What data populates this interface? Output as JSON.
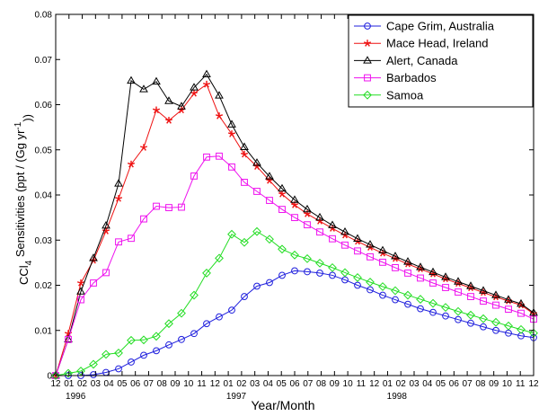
{
  "chart_data": {
    "type": "line",
    "title": "",
    "xlabel": "Year/Month",
    "ylabel": "CCl4 Sensitivities (ppt / (Gg yr-1))",
    "ylabel_parts": {
      "pre": "CCl",
      "sub": "4",
      "mid": " Sensitivities (ppt / (Gg yr",
      "sup": "-1",
      "post": "))"
    },
    "ylim": [
      0,
      0.08
    ],
    "yticks": [
      "0",
      "0.01",
      "0.02",
      "0.03",
      "0.04",
      "0.05",
      "0.06",
      "0.07",
      "0.08"
    ],
    "xticks": [
      "12",
      "01",
      "02",
      "03",
      "04",
      "05",
      "06",
      "07",
      "08",
      "09",
      "10",
      "11",
      "12",
      "01",
      "02",
      "03",
      "04",
      "05",
      "06",
      "07",
      "08",
      "09",
      "10",
      "11",
      "12",
      "01",
      "02",
      "03",
      "04",
      "05",
      "06",
      "07",
      "08",
      "09",
      "10",
      "11",
      "12"
    ],
    "year_labels": [
      "1996",
      "1997",
      "1998"
    ],
    "grid": false,
    "legend_position": "top-right",
    "series": [
      {
        "name": "Cape Grim, Australia",
        "color": "#1f1fdd",
        "marker": "circle",
        "values": [
          0.0,
          0.0,
          0.0,
          0.0002,
          0.0007,
          0.0015,
          0.003,
          0.0045,
          0.0055,
          0.0068,
          0.008,
          0.0093,
          0.0115,
          0.013,
          0.0145,
          0.0175,
          0.0198,
          0.0206,
          0.0222,
          0.0232,
          0.023,
          0.0227,
          0.0222,
          0.0212,
          0.02,
          0.019,
          0.0178,
          0.0168,
          0.0158,
          0.0148,
          0.014,
          0.0132,
          0.0124,
          0.0116,
          0.0108,
          0.01,
          0.0094,
          0.0088,
          0.0084
        ]
      },
      {
        "name": "Mace Head, Ireland",
        "color": "#ee1111",
        "marker": "star",
        "values": [
          0.0,
          0.0093,
          0.0205,
          0.0255,
          0.032,
          0.0392,
          0.0468,
          0.0505,
          0.0588,
          0.0565,
          0.0588,
          0.0625,
          0.0645,
          0.0575,
          0.0535,
          0.049,
          0.0463,
          0.0432,
          0.0402,
          0.0378,
          0.0358,
          0.0342,
          0.0326,
          0.0311,
          0.0297,
          0.0284,
          0.0271,
          0.0259,
          0.0247,
          0.0236,
          0.0225,
          0.0214,
          0.0204,
          0.0194,
          0.0184,
          0.0174,
          0.0165,
          0.0156,
          0.0137
        ]
      },
      {
        "name": "Alert, Canada",
        "color": "#000000",
        "marker": "triangle",
        "values": [
          0.0,
          0.008,
          0.0186,
          0.026,
          0.0332,
          0.0425,
          0.0653,
          0.0634,
          0.0651,
          0.0608,
          0.0596,
          0.0638,
          0.0667,
          0.062,
          0.0556,
          0.0506,
          0.0471,
          0.0441,
          0.0414,
          0.0389,
          0.0368,
          0.035,
          0.0333,
          0.0318,
          0.0303,
          0.029,
          0.0277,
          0.0264,
          0.0252,
          0.024,
          0.0229,
          0.0218,
          0.0208,
          0.0198,
          0.0188,
          0.0178,
          0.0168,
          0.0159,
          0.0139
        ]
      },
      {
        "name": "Barbados",
        "color": "#ee11ee",
        "marker": "square",
        "values": [
          0.0,
          0.008,
          0.0168,
          0.0205,
          0.0228,
          0.0296,
          0.0304,
          0.0347,
          0.0375,
          0.0372,
          0.0373,
          0.0442,
          0.0484,
          0.0486,
          0.0462,
          0.0428,
          0.0408,
          0.0388,
          0.0368,
          0.035,
          0.0334,
          0.0318,
          0.0303,
          0.0289,
          0.0276,
          0.0263,
          0.0251,
          0.0239,
          0.0227,
          0.0216,
          0.0205,
          0.0195,
          0.0185,
          0.0175,
          0.0165,
          0.0156,
          0.0147,
          0.0138,
          0.0125
        ]
      },
      {
        "name": "Samoa",
        "color": "#22dd22",
        "marker": "diamond",
        "values": [
          0.0,
          0.0005,
          0.001,
          0.0025,
          0.0047,
          0.005,
          0.0078,
          0.0079,
          0.0087,
          0.0115,
          0.0138,
          0.0178,
          0.0227,
          0.026,
          0.0313,
          0.0295,
          0.0319,
          0.0302,
          0.028,
          0.0267,
          0.0259,
          0.0249,
          0.0239,
          0.0228,
          0.0217,
          0.0207,
          0.0197,
          0.0188,
          0.0178,
          0.0169,
          0.016,
          0.0151,
          0.0142,
          0.0134,
          0.0126,
          0.0118,
          0.011,
          0.0102,
          0.0094
        ]
      }
    ]
  }
}
